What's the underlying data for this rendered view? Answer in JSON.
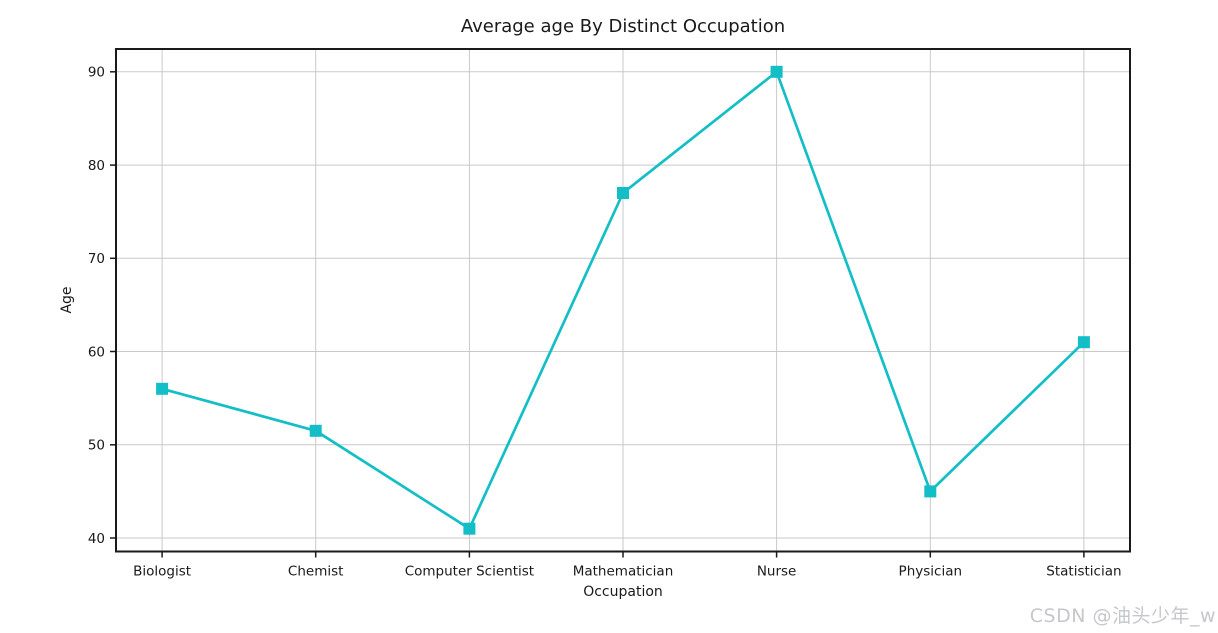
{
  "chart_data": {
    "type": "line",
    "title": "Average age By Distinct Occupation",
    "xlabel": "Occupation",
    "ylabel": "Age",
    "categories": [
      "Biologist",
      "Chemist",
      "Computer Scientist",
      "Mathematician",
      "Nurse",
      "Physician",
      "Statistician"
    ],
    "values": [
      56,
      51.5,
      41,
      77,
      90,
      45,
      61
    ],
    "yticks": [
      40,
      50,
      60,
      70,
      80,
      90
    ],
    "ylim": [
      38.55,
      92.45
    ],
    "xlim": [
      -0.3,
      6.3
    ],
    "grid": true,
    "legend": "none",
    "marker": "square",
    "line_color": "#14bec6"
  },
  "colors": {
    "accent": "#14bec6",
    "grid": "#c9c9c9",
    "spine": "#1a1a1a",
    "text": "#1a1a1a",
    "background": "#ffffff",
    "watermark": "#c5c7cb"
  },
  "watermark": {
    "text": "CSDN @油头少年_w"
  }
}
